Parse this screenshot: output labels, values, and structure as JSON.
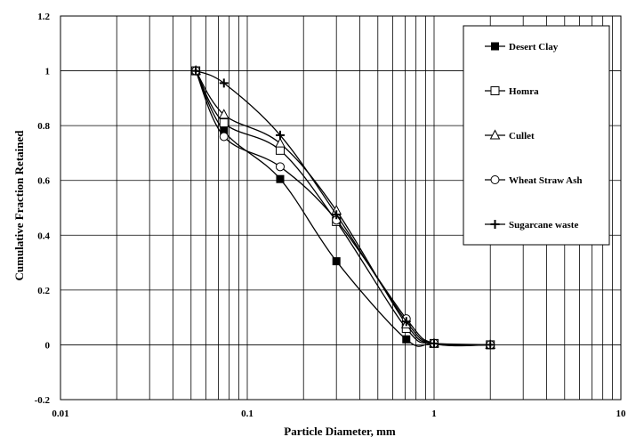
{
  "chart_data": {
    "type": "line",
    "xlabel": "Particle Diameter, mm",
    "ylabel": "Cumulative  Fraction Retained",
    "x_scale": "log",
    "xlim": [
      0.01,
      10
    ],
    "ylim": [
      -0.2,
      1.2
    ],
    "x_ticks": [
      {
        "value": 0.01,
        "label": "0.01"
      },
      {
        "value": 0.1,
        "label": "0.1"
      },
      {
        "value": 1,
        "label": "1"
      },
      {
        "value": 10,
        "label": "10"
      }
    ],
    "y_ticks": [
      {
        "value": -0.2,
        "label": "-0.2"
      },
      {
        "value": 0,
        "label": "0"
      },
      {
        "value": 0.2,
        "label": "0.2"
      },
      {
        "value": 0.4,
        "label": "0.4"
      },
      {
        "value": 0.6,
        "label": "0.6"
      },
      {
        "value": 0.8,
        "label": "0.8"
      },
      {
        "value": 1,
        "label": "1"
      },
      {
        "value": 1.2,
        "label": "1.2"
      }
    ],
    "grid": true,
    "legend_position": "top-right",
    "series": [
      {
        "name": "Desert Clay",
        "marker": "filled-square",
        "x": [
          0.053,
          0.075,
          0.15,
          0.3,
          0.71,
          1,
          2
        ],
        "y": [
          1.0,
          0.78,
          0.605,
          0.305,
          0.02,
          0.005,
          0.0
        ]
      },
      {
        "name": "Homra",
        "marker": "open-square",
        "x": [
          0.053,
          0.075,
          0.15,
          0.3,
          0.71,
          1,
          2
        ],
        "y": [
          1.0,
          0.81,
          0.71,
          0.45,
          0.06,
          0.005,
          0.0
        ]
      },
      {
        "name": "Cullet",
        "marker": "open-triangle",
        "x": [
          0.053,
          0.075,
          0.15,
          0.3,
          0.71,
          1,
          2
        ],
        "y": [
          1.0,
          0.84,
          0.735,
          0.49,
          0.075,
          0.005,
          0.0
        ]
      },
      {
        "name": "Wheat Straw Ash",
        "marker": "open-circle",
        "x": [
          0.053,
          0.075,
          0.15,
          0.3,
          0.71,
          1,
          2
        ],
        "y": [
          1.0,
          0.76,
          0.65,
          0.455,
          0.095,
          0.005,
          0.0
        ]
      },
      {
        "name": "Sugarcane waste",
        "marker": "plus",
        "x": [
          0.053,
          0.075,
          0.15,
          0.3,
          0.71,
          1,
          2
        ],
        "y": [
          1.0,
          0.955,
          0.765,
          0.475,
          0.085,
          0.005,
          0.0
        ]
      }
    ]
  }
}
